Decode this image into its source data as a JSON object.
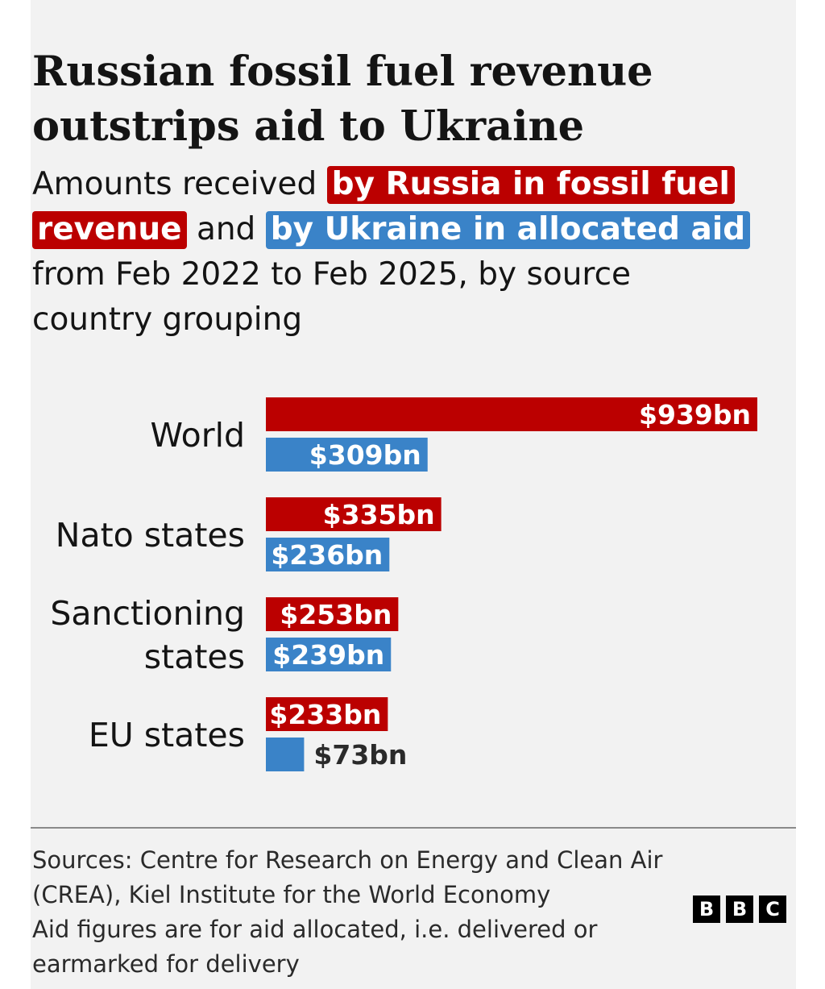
{
  "title": "Russian fossil fuel revenue outstrips aid to Ukraine",
  "subtitle": {
    "prefix": "Amounts received ",
    "highlight_russia": "by Russia in fossil fuel revenue",
    "middle": " and ",
    "highlight_ukraine": "by Ukraine in allocated aid",
    "suffix": " from Feb 2022 to Feb 2025, by source country grouping"
  },
  "colors": {
    "russia": "#bb0000",
    "ukraine": "#3a83c8",
    "background": "#f2f2f2",
    "text": "#141414"
  },
  "chart_data": {
    "type": "bar",
    "orientation": "horizontal",
    "categories": [
      "World",
      "Nato states",
      "Sanctioning states",
      "EU states"
    ],
    "category_lines": [
      [
        "World"
      ],
      [
        "Nato states"
      ],
      [
        "Sanctioning",
        "states"
      ],
      [
        "EU states"
      ]
    ],
    "series": [
      {
        "name": "by Russia in fossil fuel revenue",
        "values": [
          939,
          335,
          253,
          233
        ],
        "labels": [
          "$939bn",
          "$335bn",
          "$253bn",
          "$233bn"
        ]
      },
      {
        "name": "by Ukraine in allocated aid",
        "values": [
          309,
          236,
          239,
          73
        ],
        "labels": [
          "$309bn",
          "$236bn",
          "$239bn",
          "$73bn"
        ]
      }
    ],
    "xlim": [
      0,
      939
    ],
    "grid": false,
    "legend": "inline in subtitle"
  },
  "footer": {
    "sources": "Sources: Centre for Research on Energy and Clean Air (CREA), Kiel Institute for the World Economy",
    "note": "Aid figures are for aid allocated, i.e. delivered or earmarked for delivery"
  },
  "logo": {
    "letters": [
      "B",
      "B",
      "C"
    ]
  }
}
